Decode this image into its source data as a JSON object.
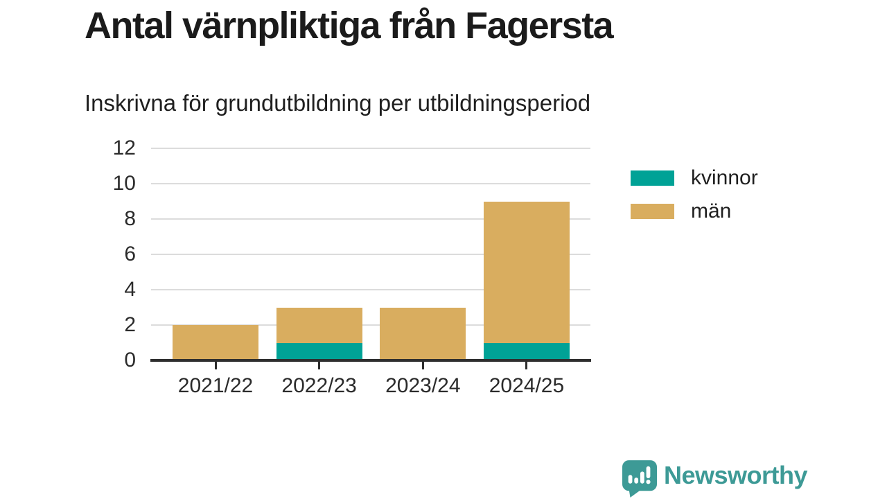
{
  "header": {
    "title": "Antal värnpliktiga från Fagersta",
    "subtitle": "Inskrivna för grundutbildning per utbildningsperiod"
  },
  "chart_data": {
    "type": "bar",
    "stacked": true,
    "title": "Antal värnpliktiga från Fagersta",
    "subtitle": "Inskrivna för grundutbildning per utbildningsperiod",
    "categories": [
      "2021/22",
      "2022/23",
      "2023/24",
      "2024/25"
    ],
    "series": [
      {
        "name": "kvinnor",
        "color": "#00a296",
        "values": [
          0,
          1,
          0,
          1
        ]
      },
      {
        "name": "män",
        "color": "#d9ad5f",
        "values": [
          2,
          2,
          3,
          8
        ]
      }
    ],
    "totals": [
      2,
      3,
      3,
      9
    ],
    "xlabel": "",
    "ylabel": "",
    "ylim": [
      0,
      12
    ],
    "yticks": [
      0,
      2,
      4,
      6,
      8,
      10,
      12
    ],
    "grid": true,
    "legend_position": "right",
    "colors": {
      "gridline": "#dcdcdc",
      "axis_line": "#2e2e2e",
      "axis_text": "#2b2b2b",
      "title_text": "#1b1b1b"
    }
  },
  "branding": {
    "logo_text": "Newsworthy",
    "logo_color": "#3d9a96",
    "logo_icon": "bar-chart-speech-bubble-icon"
  }
}
